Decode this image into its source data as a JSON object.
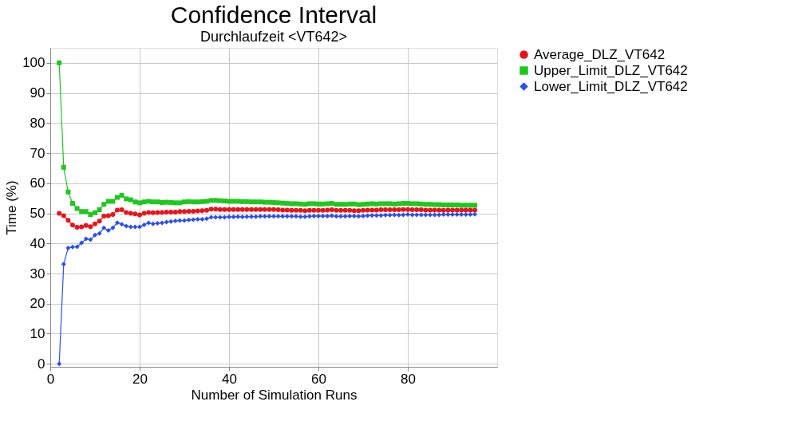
{
  "chart_data": {
    "type": "line",
    "title": "Confidence Interval",
    "subtitle": "Durchlaufzeit <VT642>",
    "xlabel": "Number of Simulation Runs",
    "ylabel": "Time (%)",
    "x": [
      2,
      3,
      4,
      5,
      6,
      7,
      8,
      9,
      10,
      11,
      12,
      13,
      14,
      15,
      16,
      17,
      18,
      19,
      20,
      21,
      22,
      23,
      24,
      25,
      26,
      27,
      28,
      29,
      30,
      31,
      32,
      33,
      34,
      35,
      36,
      37,
      38,
      39,
      40,
      41,
      42,
      43,
      44,
      45,
      46,
      47,
      48,
      49,
      50,
      51,
      52,
      53,
      54,
      55,
      56,
      57,
      58,
      59,
      60,
      61,
      62,
      63,
      64,
      65,
      66,
      67,
      68,
      69,
      70,
      71,
      72,
      73,
      74,
      75,
      76,
      77,
      78,
      79,
      80,
      81,
      82,
      83,
      84,
      85,
      86,
      87,
      88,
      89,
      90,
      91,
      92,
      93,
      94,
      95
    ],
    "series": [
      {
        "name": "Average_DLZ_VT642",
        "color": "#e8141c",
        "marker": "circle",
        "values": [
          50,
          49.2,
          47.7,
          46.1,
          45.4,
          45.5,
          46,
          45.6,
          46.5,
          47.4,
          49.1,
          49.2,
          49.6,
          51.1,
          51.2,
          50.3,
          50,
          49.8,
          49.5,
          50,
          50.3,
          50.2,
          50.3,
          50.3,
          50.4,
          50.4,
          50.4,
          50.6,
          50.6,
          50.7,
          50.7,
          50.8,
          50.9,
          51.0,
          51.4,
          51.4,
          51.3,
          51.3,
          51.3,
          51.3,
          51.3,
          51.3,
          51.3,
          51.3,
          51.3,
          51.3,
          51.3,
          51.3,
          51.3,
          51.2,
          51.1,
          51.1,
          51.0,
          51.0,
          51.0,
          50.9,
          51.0,
          51.0,
          51.0,
          51.0,
          51.1,
          51.2,
          51.0,
          51.0,
          51.0,
          51.0,
          50.9,
          50.9,
          51.0,
          51.1,
          51.1,
          51.1,
          51.2,
          51.2,
          51.2,
          51.2,
          51.2,
          51.3,
          51.3,
          51.2,
          51.2,
          51.2,
          51.1,
          51.1,
          51.1,
          51.1,
          51.0,
          51.1,
          51.1,
          51.1,
          51.1,
          51.1,
          51.1,
          51.1
        ]
      },
      {
        "name": "Upper_Limit_DLZ_VT642",
        "color": "#1ec81e",
        "marker": "square",
        "values": [
          100,
          65.3,
          57.1,
          53.3,
          51.6,
          50.6,
          50.6,
          49.6,
          50.2,
          51.2,
          53,
          54,
          54,
          55.3,
          56,
          54.8,
          54.5,
          53.8,
          53.5,
          53.8,
          54,
          53.8,
          53.8,
          53.6,
          53.7,
          53.6,
          53.5,
          53.5,
          53.8,
          53.9,
          53.8,
          53.8,
          53.9,
          54.0,
          54.3,
          54.3,
          54.2,
          54.1,
          54.0,
          54.0,
          54.0,
          53.9,
          53.9,
          53.8,
          53.8,
          53.8,
          53.7,
          53.7,
          53.6,
          53.5,
          53.4,
          53.3,
          53.2,
          53.2,
          53.1,
          53.0,
          53.2,
          53.2,
          53.1,
          53.1,
          53.2,
          53.3,
          53.0,
          53.0,
          53.0,
          53.1,
          53.1,
          52.9,
          53.0,
          53.1,
          53.2,
          53.1,
          53.2,
          53.2,
          53.2,
          53.1,
          53.2,
          53.3,
          53.3,
          53.2,
          53.2,
          53.1,
          53.0,
          53.0,
          52.9,
          52.9,
          52.8,
          52.8,
          52.8,
          52.8,
          52.7,
          52.7,
          52.7,
          52.7
        ]
      },
      {
        "name": "Lower_Limit_DLZ_VT642",
        "color": "#2a4ff0",
        "marker": "diamond",
        "values": [
          0,
          33.1,
          38.5,
          38.8,
          38.9,
          40.2,
          41.5,
          41.3,
          42.8,
          43.3,
          45.2,
          44.3,
          45.2,
          46.9,
          46.4,
          45.8,
          45.5,
          45.5,
          45.5,
          46.2,
          46.8,
          46.5,
          46.7,
          46.8,
          47.1,
          47.3,
          47.5,
          47.6,
          47.6,
          47.8,
          47.9,
          48.0,
          48.0,
          48.2,
          48.7,
          48.7,
          48.7,
          48.7,
          48.8,
          48.8,
          48.9,
          48.8,
          48.9,
          48.9,
          48.9,
          49.0,
          49.0,
          49.0,
          49.0,
          49.0,
          49.0,
          49.0,
          49.0,
          49.0,
          48.9,
          48.9,
          49.0,
          49.1,
          49.1,
          49.1,
          49.1,
          49.2,
          49.0,
          49.0,
          49.0,
          49.1,
          49.1,
          49.0,
          49.1,
          49.2,
          49.3,
          49.3,
          49.3,
          49.4,
          49.4,
          49.5,
          49.4,
          49.5,
          49.6,
          49.5,
          49.5,
          49.5,
          49.5,
          49.5,
          49.5,
          49.5,
          49.6,
          49.6,
          49.6,
          49.6,
          49.6,
          49.6,
          49.6,
          49.7
        ]
      }
    ],
    "xlim": [
      0,
      100
    ],
    "xticks": [
      0,
      20,
      40,
      60,
      80
    ],
    "ylim": [
      -1,
      105
    ],
    "yticks": [
      0,
      10,
      20,
      30,
      40,
      50,
      60,
      70,
      80,
      90,
      100
    ],
    "grid": true,
    "legend": "top right",
    "line_style": "solid"
  }
}
